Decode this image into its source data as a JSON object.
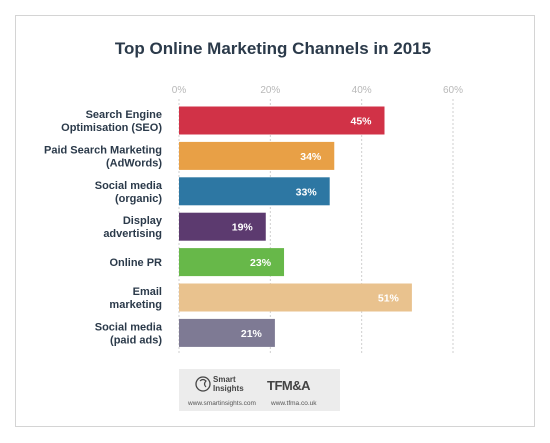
{
  "chart_data": {
    "type": "bar",
    "orientation": "horizontal",
    "title": "Top Online Marketing Channels in 2015",
    "xlabel": "",
    "ylabel": "",
    "xlim": [
      0,
      60
    ],
    "ticks": [
      "0%",
      "20%",
      "40%",
      "60%"
    ],
    "tick_values": [
      0,
      20,
      40,
      60
    ],
    "grid": true,
    "categories": [
      [
        "Search Engine",
        "Optimisation (SEO)"
      ],
      [
        "Paid Search Marketing",
        "(AdWords)"
      ],
      [
        "Social media",
        "(organic)"
      ],
      [
        "Display",
        "advertising"
      ],
      [
        "Online PR"
      ],
      [
        "Email",
        "marketing"
      ],
      [
        "Social media",
        "(paid ads)"
      ]
    ],
    "values": [
      45,
      34,
      33,
      19,
      23,
      51,
      21
    ],
    "value_labels": [
      "45%",
      "34%",
      "33%",
      "19%",
      "23%",
      "51%",
      "21%"
    ],
    "colors": [
      "#d13247",
      "#e8a046",
      "#2d77a3",
      "#5c3a6f",
      "#67b849",
      "#e9c28e",
      "#7e7a94"
    ]
  },
  "footer": {
    "brand1_line1": "Smart",
    "brand1_line2": "Insights",
    "brand1_url": "www.smartinsights.com",
    "brand2": "TFM&A",
    "brand2_url": "www.tfma.co.uk"
  }
}
